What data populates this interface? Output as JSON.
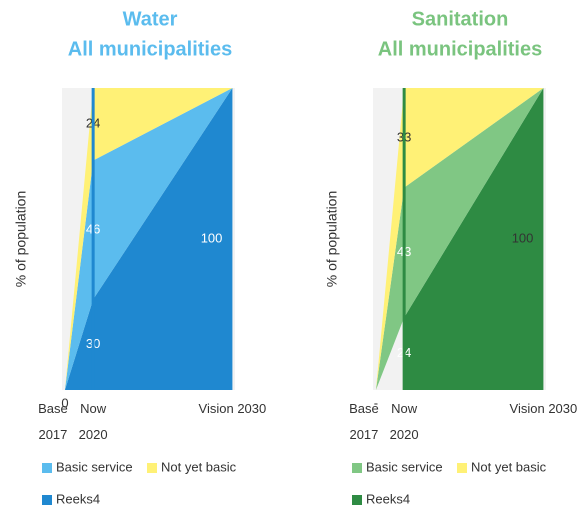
{
  "chart_data": [
    {
      "type": "area",
      "stacked": true,
      "title": "Water",
      "subtitle": "All municipalities",
      "ylabel": "% of population",
      "categories": [
        "Base\n2017",
        "Now\n2020",
        "Vision 2030"
      ],
      "ylim": [
        0,
        100
      ],
      "series": [
        {
          "name": "Reeks4",
          "color": "#1f88d0",
          "values": [
            0,
            30,
            100
          ]
        },
        {
          "name": "Basic service",
          "color": "#5bbcee",
          "values": [
            0,
            46,
            0
          ]
        },
        {
          "name": "Not yet basic",
          "color": "#fff176",
          "values": [
            0,
            24,
            0
          ]
        }
      ]
    },
    {
      "type": "area",
      "stacked": true,
      "title": "Sanitation",
      "subtitle": "All municipalities",
      "ylabel": "% of population",
      "categories": [
        "Base\n2017",
        "Now\n2020",
        "Vision 2030"
      ],
      "ylim": [
        0,
        100
      ],
      "series": [
        {
          "name": "Reeks4",
          "color": "#2e8b43",
          "values": [
            null,
            24,
            100
          ],
          "value_labels": [
            "-",
            "24",
            "100"
          ]
        },
        {
          "name": "Basic service",
          "color": "#80c784",
          "values": [
            0,
            43,
            0
          ]
        },
        {
          "name": "Not yet basic",
          "color": "#fff176",
          "values": [
            0,
            33,
            0
          ]
        }
      ]
    }
  ]
}
